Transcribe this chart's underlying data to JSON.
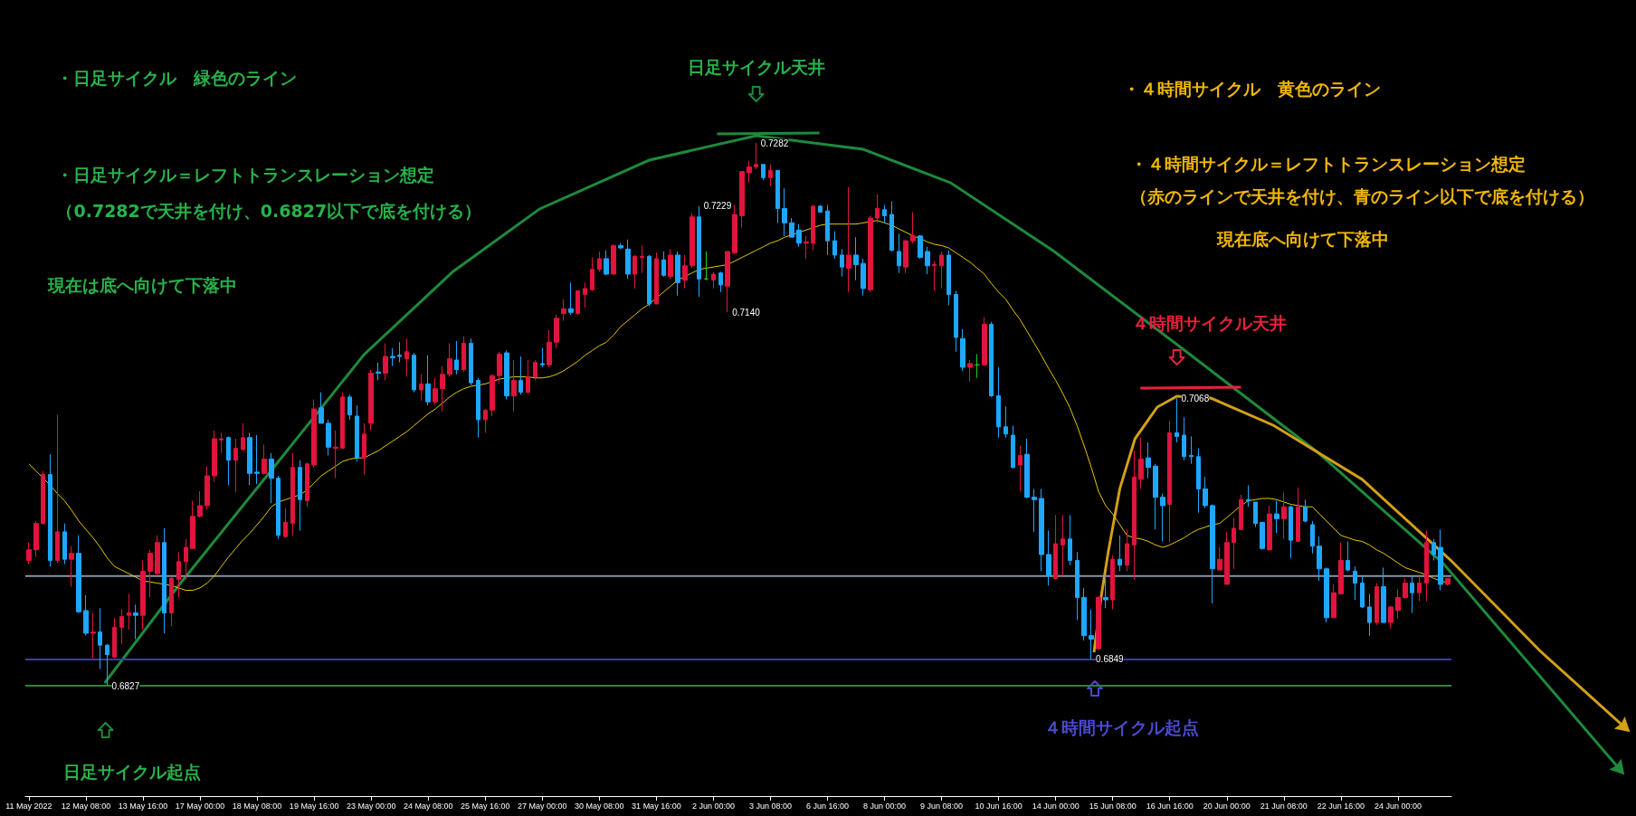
{
  "chart_data": {
    "type": "candlestick",
    "categories": [
      "11 May 2022",
      null,
      null,
      null,
      null,
      null,
      null,
      null,
      "12 May 08:00",
      null,
      null,
      null,
      null,
      null,
      null,
      null,
      "13 May 16:00",
      null,
      null,
      null,
      null,
      null,
      null,
      null,
      "17 May 00:00",
      null,
      null,
      null,
      null,
      null,
      null,
      null,
      "18 May 08:00",
      null,
      null,
      null,
      null,
      null,
      null,
      null,
      "19 May 16:00",
      null,
      null,
      null,
      null,
      null,
      null,
      null,
      "23 May 00:00",
      null,
      null,
      null,
      null,
      null,
      null,
      null,
      "24 May 08:00",
      null,
      null,
      null,
      null,
      null,
      null,
      null,
      "25 May 16:00",
      null,
      null,
      null,
      null,
      null,
      null,
      null,
      "27 May 00:00",
      null,
      null,
      null,
      null,
      null,
      null,
      null,
      "30 May 08:00",
      null,
      null,
      null,
      null,
      null,
      null,
      null,
      "31 May 16:00",
      null,
      null,
      null,
      null,
      null,
      null,
      null,
      "2 Jun 00:00",
      null,
      null,
      null,
      null,
      null,
      null,
      null,
      "3 Jun 08:00",
      null,
      null,
      null,
      null,
      null,
      null,
      null,
      "6 Jun 16:00",
      null,
      null,
      null,
      null,
      null,
      null,
      null,
      "8 Jun 00:00",
      null,
      null,
      null,
      null,
      null,
      null,
      null,
      "9 Jun 08:00",
      null,
      null,
      null,
      null,
      null,
      null,
      null,
      "10 Jun 16:00",
      null,
      null,
      null,
      null,
      null,
      null,
      null,
      "14 Jun 00:00",
      null,
      null,
      null,
      null,
      null,
      null,
      null,
      "15 Jun 08:00",
      null,
      null,
      null,
      null,
      null,
      null,
      null,
      "16 Jun 16:00",
      null,
      null,
      null,
      null,
      null,
      null,
      null,
      "20 Jun 00:00",
      null,
      null,
      null,
      null,
      null,
      null,
      null,
      "21 Jun 08:00",
      null,
      null,
      null,
      null,
      null,
      null,
      null,
      "22 Jun 16:00",
      null,
      null,
      null,
      null,
      null,
      null,
      null,
      "24 Jun 00:00",
      null,
      null,
      null,
      null,
      null,
      null,
      null
    ],
    "colors": [
      "#e0143c",
      "#e0143c",
      "#e0143c",
      "#1ea7ff",
      "#e0143c",
      "#1ea7ff",
      "#e0143c",
      "#1ea7ff",
      "#1ea7ff",
      "#e0143c",
      "#1ea7ff",
      "#1ea7ff",
      "#e0143c",
      "#e0143c",
      "#e0143c",
      "#1ea7ff",
      "#e0143c",
      "#e0143c",
      "#e0143c",
      "#1ea7ff",
      "#e0143c",
      "#e0143c",
      "#e0143c",
      "#e0143c",
      "#e0143c",
      "#e0143c",
      "#e0143c",
      "#e0143c",
      "#1ea7ff",
      "#e0143c",
      "#e0143c",
      "#1ea7ff",
      "#1ea7ff",
      "#e0143c",
      "#1ea7ff",
      "#1ea7ff",
      "#e0143c",
      "#e0143c",
      "#1ea7ff",
      "#e0143c",
      "#e0143c",
      "#1ea7ff",
      "#1ea7ff",
      "#e0143c",
      "#e0143c",
      "#1ea7ff",
      "#1ea7ff",
      "#e0143c",
      "#e0143c",
      "#1ea7ff",
      "#e0143c",
      "#1ea7ff",
      "#1ea7ff",
      "#e0143c",
      "#1ea7ff",
      "#e0143c",
      "#1ea7ff",
      "#e0143c",
      "#e0143c",
      "#e0143c",
      "#1ea7ff",
      "#e0143c",
      "#1ea7ff",
      "#1ea7ff",
      "#e0143c",
      "#e0143c",
      "#e0143c",
      "#1ea7ff",
      "#e0143c",
      "#1ea7ff",
      "#e0143c",
      "#e0143c",
      "#1ea7ff",
      "#e0143c",
      "#e0143c",
      "#e0143c",
      "#1ea7ff",
      "#e0143c",
      "#e0143c",
      "#e0143c",
      "#e0143c",
      "#1ea7ff",
      "#e0143c",
      "#1ea7ff",
      "#1ea7ff",
      "#e0143c",
      "#e0143c",
      "#1ea7ff",
      "#e0143c",
      "#1ea7ff",
      "#e0143c",
      "#1ea7ff",
      "#e0143c",
      "#e0143c",
      "#1ea7ff",
      "#22cc22",
      "#e0143c",
      "#1ea7ff",
      "#e0143c",
      "#e0143c",
      "#e0143c",
      "#e0143c",
      "#e0143c",
      "#1ea7ff",
      "#e0143c",
      "#1ea7ff",
      "#1ea7ff",
      "#1ea7ff",
      "#1ea7ff",
      "#e0143c",
      "#e0143c",
      "#1ea7ff",
      "#1ea7ff",
      "#1ea7ff",
      "#1ea7ff",
      "#e0143c",
      "#1ea7ff",
      "#1ea7ff",
      "#e0143c",
      "#e0143c",
      "#1ea7ff",
      "#1ea7ff",
      "#1ea7ff",
      "#e0143c",
      "#e0143c",
      "#1ea7ff",
      "#1ea7ff",
      "#e0143c",
      "#e0143c",
      "#1ea7ff",
      "#1ea7ff",
      "#1ea7ff",
      "#e0143c",
      "#22cc22",
      "#e0143c",
      "#1ea7ff",
      "#1ea7ff",
      "#1ea7ff",
      "#1ea7ff",
      "#e0143c",
      "#1ea7ff",
      "#1ea7ff",
      "#1ea7ff",
      "#1ea7ff",
      "#e0143c",
      "#e0143c",
      "#1ea7ff",
      "#1ea7ff",
      "#1ea7ff",
      "#1ea7ff",
      "#e0143c",
      "#1ea7ff",
      "#e0143c",
      "#1ea7ff",
      "#e0143c",
      "#e0143c",
      "#e0143c",
      "#1ea7ff",
      "#1ea7ff",
      "#1ea7ff",
      "#e0143c",
      "#1ea7ff",
      "#1ea7ff",
      "#1ea7ff",
      "#1ea7ff",
      "#1ea7ff",
      "#1ea7ff",
      "#e0143c",
      "#e0143c",
      "#e0143c",
      "#e0143c",
      "#1ea7ff",
      "#1ea7ff",
      "#1ea7ff",
      "#e0143c",
      "#1ea7ff",
      "#e0143c",
      "#1ea7ff",
      "#e0143c",
      "#1ea7ff",
      "#1ea7ff",
      "#1ea7ff",
      "#1ea7ff",
      "#e0143c",
      "#e0143c",
      "#1ea7ff",
      "#1ea7ff",
      "#1ea7ff",
      "#1ea7ff",
      "#e0143c",
      "#1ea7ff",
      "#e0143c",
      "#e0143c",
      "#e0143c",
      "#1ea7ff",
      "#e0143c",
      "#e0143c",
      "#1ea7ff",
      "#1ea7ff",
      "#e0143c"
    ],
    "ohlc": [
      [
        0.6932,
        0.6947,
        0.6929,
        0.6941
      ],
      [
        0.6941,
        0.6965,
        0.6935,
        0.6963
      ],
      [
        0.6963,
        0.7007,
        0.6962,
        0.7004
      ],
      [
        0.7004,
        0.7021,
        0.6927,
        0.6932
      ],
      [
        0.6932,
        0.7054,
        0.693,
        0.6956
      ],
      [
        0.6956,
        0.6963,
        0.6929,
        0.6933
      ],
      [
        0.6933,
        0.6944,
        0.691,
        0.6938
      ],
      [
        0.6938,
        0.6953,
        0.6888,
        0.6889
      ],
      [
        0.689,
        0.6903,
        0.6869,
        0.6871
      ],
      [
        0.6871,
        0.6888,
        0.685,
        0.6872
      ],
      [
        0.6872,
        0.6892,
        0.6841,
        0.6861
      ],
      [
        0.6861,
        0.6862,
        0.6827,
        0.6853
      ],
      [
        0.6851,
        0.6884,
        0.685,
        0.6876
      ],
      [
        0.6876,
        0.6891,
        0.6862,
        0.6885
      ],
      [
        0.6886,
        0.6904,
        0.6874,
        0.6888
      ],
      [
        0.6888,
        0.6895,
        0.6866,
        0.6886
      ],
      [
        0.6886,
        0.6932,
        0.6874,
        0.6923
      ],
      [
        0.6923,
        0.6941,
        0.6901,
        0.6938
      ],
      [
        0.6921,
        0.6953,
        0.6919,
        0.6947
      ],
      [
        0.6947,
        0.6959,
        0.6871,
        0.6888
      ],
      [
        0.6888,
        0.6919,
        0.6877,
        0.6917
      ],
      [
        0.6916,
        0.6939,
        0.6901,
        0.6931
      ],
      [
        0.6931,
        0.695,
        0.6916,
        0.6943
      ],
      [
        0.6942,
        0.6982,
        0.6942,
        0.6969
      ],
      [
        0.6969,
        0.699,
        0.6968,
        0.6978
      ],
      [
        0.6978,
        0.7011,
        0.6975,
        0.7003
      ],
      [
        0.7003,
        0.7041,
        0.6998,
        0.7034
      ],
      [
        0.7033,
        0.7039,
        0.7022,
        0.7034
      ],
      [
        0.7035,
        0.7036,
        0.6995,
        0.7016
      ],
      [
        0.7016,
        0.7034,
        0.6989,
        0.7026
      ],
      [
        0.7025,
        0.7047,
        0.7024,
        0.7035
      ],
      [
        0.7035,
        0.7039,
        0.6995,
        0.7005
      ],
      [
        0.7006,
        0.7037,
        0.6996,
        0.7005
      ],
      [
        0.7005,
        0.7029,
        0.7004,
        0.7017
      ],
      [
        0.7017,
        0.7022,
        0.698,
        0.7001
      ],
      [
        0.7001,
        0.7003,
        0.695,
        0.6953
      ],
      [
        0.6952,
        0.6976,
        0.6951,
        0.6964
      ],
      [
        0.6963,
        0.7022,
        0.6953,
        0.701
      ],
      [
        0.701,
        0.7016,
        0.6957,
        0.6983
      ],
      [
        0.6982,
        0.7014,
        0.6977,
        0.7013
      ],
      [
        0.7012,
        0.7067,
        0.701,
        0.7059
      ],
      [
        0.706,
        0.7073,
        0.7047,
        0.7047
      ],
      [
        0.7047,
        0.705,
        0.702,
        0.7027
      ],
      [
        0.7026,
        0.7041,
        0.7001,
        0.7027
      ],
      [
        0.7026,
        0.7073,
        0.7026,
        0.7069
      ],
      [
        0.7069,
        0.7071,
        0.705,
        0.7054
      ],
      [
        0.7053,
        0.7062,
        0.7015,
        0.7018
      ],
      [
        0.7018,
        0.7047,
        0.7004,
        0.7038
      ],
      [
        0.7047,
        0.7092,
        0.7041,
        0.7089
      ],
      [
        0.709,
        0.7098,
        0.7083,
        0.7089
      ],
      [
        0.7089,
        0.7114,
        0.7083,
        0.7103
      ],
      [
        0.7103,
        0.711,
        0.7095,
        0.7102
      ],
      [
        0.7104,
        0.7115,
        0.7098,
        0.7103
      ],
      [
        0.7101,
        0.7118,
        0.7086,
        0.7107
      ],
      [
        0.7104,
        0.7106,
        0.7073,
        0.7075
      ],
      [
        0.7075,
        0.7088,
        0.7066,
        0.708
      ],
      [
        0.708,
        0.7104,
        0.7062,
        0.7065
      ],
      [
        0.7065,
        0.7085,
        0.7063,
        0.7076
      ],
      [
        0.7076,
        0.7095,
        0.7057,
        0.7088
      ],
      [
        0.7088,
        0.7114,
        0.7086,
        0.7101
      ],
      [
        0.71,
        0.7116,
        0.7088,
        0.7092
      ],
      [
        0.7092,
        0.712,
        0.709,
        0.7114
      ],
      [
        0.7114,
        0.7118,
        0.7079,
        0.7081
      ],
      [
        0.7083,
        0.7085,
        0.7035,
        0.705
      ],
      [
        0.705,
        0.7059,
        0.7039,
        0.7058
      ],
      [
        0.7058,
        0.7088,
        0.7053,
        0.7087
      ],
      [
        0.7087,
        0.7107,
        0.708,
        0.7105
      ],
      [
        0.7106,
        0.7108,
        0.7067,
        0.707
      ],
      [
        0.707,
        0.71,
        0.7057,
        0.7083
      ],
      [
        0.7083,
        0.7103,
        0.7071,
        0.7073
      ],
      [
        0.7073,
        0.71,
        0.7072,
        0.7086
      ],
      [
        0.7086,
        0.71,
        0.7083,
        0.7098
      ],
      [
        0.7097,
        0.711,
        0.7094,
        0.7096
      ],
      [
        0.7096,
        0.7125,
        0.7094,
        0.7115
      ],
      [
        0.7115,
        0.7138,
        0.711,
        0.7135
      ],
      [
        0.7139,
        0.7151,
        0.7133,
        0.7143
      ],
      [
        0.7143,
        0.7165,
        0.7138,
        0.714
      ],
      [
        0.7139,
        0.7158,
        0.7138,
        0.7158
      ],
      [
        0.7155,
        0.7165,
        0.7144,
        0.716
      ],
      [
        0.7159,
        0.7186,
        0.7158,
        0.7176
      ],
      [
        0.7176,
        0.7191,
        0.7174,
        0.7185
      ],
      [
        0.7185,
        0.7192,
        0.7171,
        0.7172
      ],
      [
        0.7172,
        0.7197,
        0.7172,
        0.7196
      ],
      [
        0.7196,
        0.7198,
        0.7193,
        0.7194
      ],
      [
        0.7193,
        0.7201,
        0.7168,
        0.7172
      ],
      [
        0.7172,
        0.7188,
        0.716,
        0.7187
      ],
      [
        0.7186,
        0.7196,
        0.7173,
        0.7187
      ],
      [
        0.7187,
        0.7188,
        0.7145,
        0.7147
      ],
      [
        0.7147,
        0.719,
        0.7147,
        0.7185
      ],
      [
        0.7184,
        0.7191,
        0.717,
        0.7171
      ],
      [
        0.717,
        0.7193,
        0.7168,
        0.7188
      ],
      [
        0.7188,
        0.7191,
        0.7154,
        0.7165
      ],
      [
        0.7167,
        0.7188,
        0.716,
        0.7179
      ],
      [
        0.7179,
        0.7223,
        0.7177,
        0.722
      ],
      [
        0.722,
        0.7229,
        0.7153,
        0.7168
      ],
      [
        0.7168,
        0.7191,
        0.7167,
        0.7168
      ],
      [
        0.7167,
        0.7174,
        0.716,
        0.7172
      ],
      [
        0.7173,
        0.7174,
        0.7157,
        0.7163
      ],
      [
        0.7162,
        0.7191,
        0.714,
        0.7191
      ],
      [
        0.719,
        0.723,
        0.7189,
        0.7222
      ],
      [
        0.7221,
        0.7258,
        0.7211,
        0.7258
      ],
      [
        0.7257,
        0.7267,
        0.7249,
        0.7262
      ],
      [
        0.7262,
        0.7282,
        0.726,
        0.7264
      ],
      [
        0.7264,
        0.7264,
        0.7251,
        0.7253
      ],
      [
        0.7253,
        0.7264,
        0.7246,
        0.7259
      ],
      [
        0.7259,
        0.7259,
        0.7215,
        0.7227
      ],
      [
        0.7227,
        0.7244,
        0.7204,
        0.7215
      ],
      [
        0.7215,
        0.7219,
        0.7203,
        0.7203
      ],
      [
        0.7209,
        0.7214,
        0.7195,
        0.7198
      ],
      [
        0.7198,
        0.7204,
        0.7185,
        0.7199
      ],
      [
        0.7198,
        0.723,
        0.7192,
        0.7229
      ],
      [
        0.7229,
        0.723,
        0.7224,
        0.7224
      ],
      [
        0.7225,
        0.723,
        0.7188,
        0.72
      ],
      [
        0.72,
        0.7208,
        0.7185,
        0.7188
      ],
      [
        0.7188,
        0.7193,
        0.717,
        0.7178
      ],
      [
        0.7177,
        0.7245,
        0.7157,
        0.7188
      ],
      [
        0.7188,
        0.7203,
        0.7167,
        0.718
      ],
      [
        0.7181,
        0.7185,
        0.7154,
        0.716
      ],
      [
        0.7159,
        0.7221,
        0.7157,
        0.7219
      ],
      [
        0.7219,
        0.7239,
        0.7215,
        0.7227
      ],
      [
        0.7226,
        0.723,
        0.7215,
        0.7221
      ],
      [
        0.7222,
        0.7233,
        0.7191,
        0.7192
      ],
      [
        0.7191,
        0.7206,
        0.7173,
        0.7179
      ],
      [
        0.7178,
        0.7201,
        0.7173,
        0.72
      ],
      [
        0.72,
        0.7224,
        0.7198,
        0.7204
      ],
      [
        0.7204,
        0.7205,
        0.7185,
        0.7186
      ],
      [
        0.7191,
        0.7195,
        0.7172,
        0.7179
      ],
      [
        0.7179,
        0.7183,
        0.7158,
        0.718
      ],
      [
        0.7179,
        0.7191,
        0.716,
        0.7188
      ],
      [
        0.7188,
        0.7192,
        0.7146,
        0.7155
      ],
      [
        0.7155,
        0.7158,
        0.7107,
        0.7119
      ],
      [
        0.7118,
        0.7126,
        0.7091,
        0.7094
      ],
      [
        0.7094,
        0.71,
        0.7082,
        0.7097
      ],
      [
        0.7096,
        0.7105,
        0.7085,
        0.7096
      ],
      [
        0.7096,
        0.7136,
        0.7095,
        0.713
      ],
      [
        0.713,
        0.7132,
        0.7069,
        0.707
      ],
      [
        0.707,
        0.7094,
        0.7035,
        0.7044
      ],
      [
        0.7044,
        0.7061,
        0.7035,
        0.7038
      ],
      [
        0.7037,
        0.7045,
        0.7009,
        0.701
      ],
      [
        0.7012,
        0.7028,
        0.699,
        0.702
      ],
      [
        0.7021,
        0.7034,
        0.6984,
        0.6985
      ],
      [
        0.6985,
        0.6992,
        0.6956,
        0.6983
      ],
      [
        0.6984,
        0.6992,
        0.6923,
        0.6937
      ],
      [
        0.6937,
        0.6957,
        0.6911,
        0.6919
      ],
      [
        0.6917,
        0.697,
        0.6916,
        0.6946
      ],
      [
        0.6945,
        0.697,
        0.6919,
        0.695
      ],
      [
        0.695,
        0.697,
        0.6928,
        0.6932
      ],
      [
        0.6932,
        0.6939,
        0.6882,
        0.6901
      ],
      [
        0.6901,
        0.6909,
        0.6865,
        0.6869
      ],
      [
        0.6869,
        0.6891,
        0.6849,
        0.6866
      ],
      [
        0.6858,
        0.6902,
        0.6857,
        0.6901
      ],
      [
        0.6901,
        0.6917,
        0.6892,
        0.6899
      ],
      [
        0.6899,
        0.6936,
        0.6891,
        0.6933
      ],
      [
        0.6933,
        0.6953,
        0.6923,
        0.6928
      ],
      [
        0.6928,
        0.6958,
        0.6923,
        0.6946
      ],
      [
        0.6945,
        0.7024,
        0.6916,
        0.7002
      ],
      [
        0.7,
        0.7035,
        0.6992,
        0.7017
      ],
      [
        0.7018,
        0.7031,
        0.7001,
        0.701
      ],
      [
        0.7011,
        0.7013,
        0.6958,
        0.6985
      ],
      [
        0.6985,
        0.6988,
        0.6948,
        0.6978
      ],
      [
        0.6979,
        0.7049,
        0.6947,
        0.7039
      ],
      [
        0.7039,
        0.7068,
        0.7031,
        0.7036
      ],
      [
        0.7037,
        0.7052,
        0.7016,
        0.7019
      ],
      [
        0.702,
        0.7036,
        0.7013,
        0.7019
      ],
      [
        0.7019,
        0.7026,
        0.6972,
        0.6992
      ],
      [
        0.6992,
        0.7002,
        0.6976,
        0.6978
      ],
      [
        0.6978,
        0.6979,
        0.6896,
        0.6925
      ],
      [
        0.6924,
        0.6943,
        0.6924,
        0.6933
      ],
      [
        0.6912,
        0.6956,
        0.6912,
        0.6947
      ],
      [
        0.6947,
        0.6968,
        0.6925,
        0.6959
      ],
      [
        0.6958,
        0.6987,
        0.6958,
        0.6983
      ],
      [
        0.6983,
        0.6995,
        0.6977,
        0.6982
      ],
      [
        0.6981,
        0.6981,
        0.696,
        0.6963
      ],
      [
        0.6964,
        0.6964,
        0.6941,
        0.6942
      ],
      [
        0.6941,
        0.6978,
        0.694,
        0.6971
      ],
      [
        0.6971,
        0.6982,
        0.6955,
        0.6967
      ],
      [
        0.6967,
        0.6989,
        0.695,
        0.6977
      ],
      [
        0.6977,
        0.6978,
        0.6934,
        0.6949
      ],
      [
        0.6948,
        0.6993,
        0.6948,
        0.6977
      ],
      [
        0.6977,
        0.6983,
        0.6964,
        0.6965
      ],
      [
        0.6962,
        0.6965,
        0.6938,
        0.6944
      ],
      [
        0.6944,
        0.6952,
        0.6915,
        0.6925
      ],
      [
        0.6925,
        0.6926,
        0.688,
        0.6884
      ],
      [
        0.6884,
        0.6912,
        0.6884,
        0.6905
      ],
      [
        0.6904,
        0.6947,
        0.6904,
        0.6932
      ],
      [
        0.6932,
        0.6948,
        0.6923,
        0.6924
      ],
      [
        0.6923,
        0.6927,
        0.6899,
        0.6913
      ],
      [
        0.6913,
        0.6919,
        0.6892,
        0.6893
      ],
      [
        0.6893,
        0.6904,
        0.6869,
        0.688
      ],
      [
        0.688,
        0.6913,
        0.6878,
        0.691
      ],
      [
        0.691,
        0.6926,
        0.688,
        0.688
      ],
      [
        0.688,
        0.6894,
        0.6875,
        0.6893
      ],
      [
        0.689,
        0.6908,
        0.6883,
        0.6901
      ],
      [
        0.6901,
        0.6917,
        0.69,
        0.6913
      ],
      [
        0.6913,
        0.6919,
        0.6888,
        0.6905
      ],
      [
        0.6905,
        0.6919,
        0.6898,
        0.6913
      ],
      [
        0.6913,
        0.6957,
        0.6898,
        0.6947
      ],
      [
        0.6947,
        0.695,
        0.6932,
        0.6937
      ],
      [
        0.6943,
        0.6958,
        0.6907,
        0.6912
      ],
      [
        0.6912,
        0.6917,
        0.6911,
        0.6917
      ]
    ],
    "series": [
      {
        "type": "line",
        "color": "#e6c800",
        "values": [
          0.7013,
          0.7007,
          0.7001,
          0.6995,
          0.6988,
          0.6982,
          0.6974,
          0.6965,
          0.6958,
          0.6951,
          0.6943,
          0.6934,
          0.6927,
          0.6924,
          0.6921,
          0.6918,
          0.6915,
          0.6914,
          0.6913,
          0.6912,
          0.6911,
          0.6909,
          0.6907,
          0.6907,
          0.6909,
          0.6913,
          0.6919,
          0.6927,
          0.6935,
          0.6942,
          0.6949,
          0.6955,
          0.6962,
          0.6969,
          0.6977,
          0.6981,
          0.6983,
          0.6985,
          0.6987,
          0.6991,
          0.6997,
          0.7003,
          0.7007,
          0.7011,
          0.7015,
          0.7017,
          0.7018,
          0.7018,
          0.7021,
          0.7024,
          0.7028,
          0.7032,
          0.7036,
          0.704,
          0.7045,
          0.705,
          0.7055,
          0.7059,
          0.7064,
          0.7069,
          0.7073,
          0.7076,
          0.7078,
          0.7079,
          0.708,
          0.7082,
          0.7084,
          0.7085,
          0.7086,
          0.7086,
          0.7086,
          0.7085,
          0.7085,
          0.7086,
          0.7088,
          0.7091,
          0.7095,
          0.7099,
          0.7104,
          0.7108,
          0.7112,
          0.7115,
          0.7121,
          0.7128,
          0.7133,
          0.7138,
          0.7143,
          0.7147,
          0.7152,
          0.7157,
          0.7162,
          0.7167,
          0.717,
          0.7173,
          0.7176,
          0.7177,
          0.7178,
          0.7179,
          0.718,
          0.7183,
          0.7186,
          0.7189,
          0.7192,
          0.7195,
          0.7198,
          0.72,
          0.7203,
          0.7205,
          0.7207,
          0.7209,
          0.7211,
          0.7213,
          0.7214,
          0.7214,
          0.7214,
          0.7214,
          0.7214,
          0.7215,
          0.7216,
          0.7217,
          0.7215,
          0.7213,
          0.721,
          0.7207,
          0.7204,
          0.7202,
          0.7199,
          0.7197,
          0.7196,
          0.7194,
          0.719,
          0.7186,
          0.7182,
          0.7177,
          0.7172,
          0.7164,
          0.7157,
          0.7151,
          0.7142,
          0.7134,
          0.7124,
          0.7114,
          0.7104,
          0.7093,
          0.7083,
          0.7072,
          0.706,
          0.7045,
          0.7028,
          0.701,
          0.699,
          0.6978,
          0.6971,
          0.6962,
          0.6953,
          0.6951,
          0.695,
          0.6948,
          0.6945,
          0.6943,
          0.6945,
          0.6948,
          0.6951,
          0.6955,
          0.6958,
          0.696,
          0.6962,
          0.6963,
          0.6968,
          0.6973,
          0.6978,
          0.6982,
          0.6983,
          0.6984,
          0.6984,
          0.6983,
          0.6981,
          0.6979,
          0.6978,
          0.6977,
          0.6977,
          0.6971,
          0.6965,
          0.6959,
          0.6953,
          0.6951,
          0.6949,
          0.6948,
          0.6945,
          0.6941,
          0.6938,
          0.6934,
          0.693,
          0.6926,
          0.6924,
          0.6922,
          0.692,
          0.6917,
          0.6915,
          0.6913
        ]
      }
    ],
    "ref_lines": [
      {
        "axis": "y",
        "value": 0.6919,
        "color": "#8a94a6"
      },
      {
        "axis": "y",
        "value": 0.6849,
        "color": "#3a3ab8"
      },
      {
        "axis": "y",
        "value": 0.6827,
        "color": "#1e8a3c"
      }
    ],
    "annotations": [
      "・日足サイクル　緑色のライン",
      "日足サイクル天井",
      "・４時間サイクル　黄色のライン",
      "・日足サイクル＝レフトトランスレーション想定",
      "（0.7282で天井を付け、0.6827以下で底を付ける）",
      "・４時間サイクル＝レフトトランスレーション想定",
      "（赤のラインで天井を付け、青のライン以下で底を付ける）",
      "現在底へ向けて下落中",
      "現在は底へ向けて下落中",
      "４時間サイクル天井",
      "日足サイクル起点",
      "４時間サイクル起点",
      {
        "text": "0.7282",
        "y": 0.7282
      },
      {
        "text": "0.7229",
        "y": 0.7229
      },
      {
        "text": "0.7140",
        "y": 0.714
      },
      {
        "text": "0.7068",
        "y": 0.7068
      },
      {
        "text": "0.6849",
        "y": 0.6849
      },
      {
        "text": "0.6827",
        "y": 0.6827
      }
    ],
    "tick_labels": "x",
    "grid": false
  }
}
